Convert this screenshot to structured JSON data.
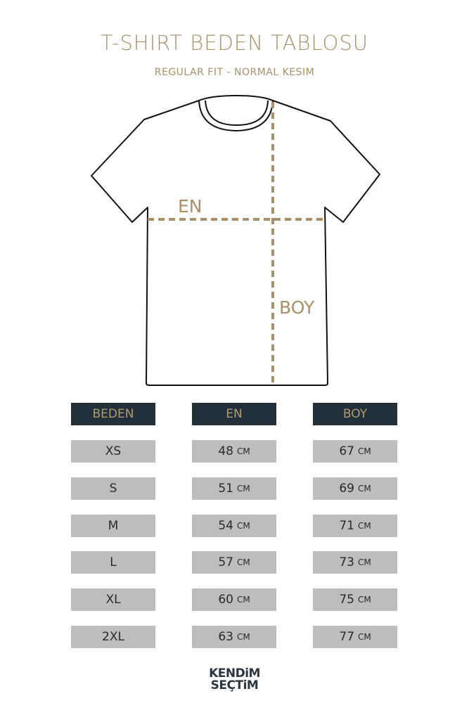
{
  "title": "T-SHIRT BEDEN TABLOSU",
  "subtitle": "REGULAR FIT - NORMAL KESIM",
  "diagram": {
    "width_label": "EN",
    "length_label": "BOY",
    "accent_color": "#a8916a"
  },
  "table": {
    "headers": [
      "BEDEN",
      "EN",
      "BOY"
    ],
    "unit": "CM",
    "rows": [
      {
        "size": "XS",
        "en": "48",
        "boy": "67"
      },
      {
        "size": "S",
        "en": "51",
        "boy": "69"
      },
      {
        "size": "M",
        "en": "54",
        "boy": "71"
      },
      {
        "size": "L",
        "en": "57",
        "boy": "73"
      },
      {
        "size": "XL",
        "en": "60",
        "boy": "75"
      },
      {
        "size": "2XL",
        "en": "63",
        "boy": "77"
      }
    ]
  },
  "logo": {
    "line1": "KENDiM",
    "line2": "SEÇTiM"
  }
}
